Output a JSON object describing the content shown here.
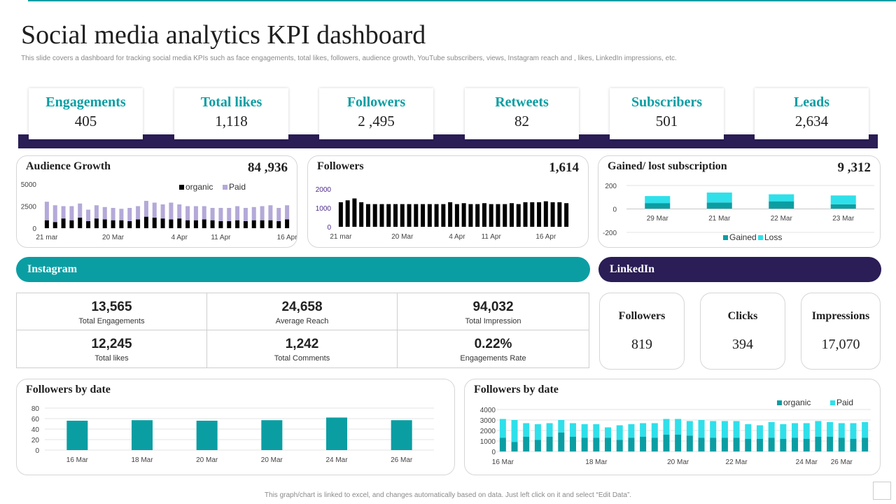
{
  "header": {
    "title": "Social media analytics KPI dashboard",
    "subtitle": "This slide covers a dashboard for tracking social media KPIs  such as face engagements, total likes,  followers, audience growth, YouTube subscribers, views, Instagram reach and , likes,  LinkedIn  impressions, etc."
  },
  "colors": {
    "teal": "#0a9ea3",
    "navy": "#2b1d55",
    "lavender": "#b4a9d8",
    "cyan": "#2fe0ea",
    "black": "#000000"
  },
  "kpis": [
    {
      "label": "Engagements",
      "value": "405"
    },
    {
      "label": "Total likes",
      "value": "1,118"
    },
    {
      "label": "Followers",
      "value": "2 ,495"
    },
    {
      "label": "Retweets",
      "value": "82"
    },
    {
      "label": "Subscribers",
      "value": "501"
    },
    {
      "label": "Leads",
      "value": "2,634"
    }
  ],
  "cards": {
    "audience": {
      "title": "Audience Growth",
      "value": "84 ,936"
    },
    "followers": {
      "title": "Followers",
      "value": "1,614"
    },
    "gained": {
      "title": "Gained/ lost subscription",
      "value": "9 ,312"
    },
    "fbd1": {
      "title": "Followers by date"
    },
    "fbd2": {
      "title": "Followers by date"
    }
  },
  "instagram": {
    "title": "Instagram",
    "metrics": [
      {
        "value": "13,565",
        "label": "Total Engagements"
      },
      {
        "value": "24,658",
        "label": "Average Reach"
      },
      {
        "value": "94,032",
        "label": "Total Impression"
      },
      {
        "value": "12,245",
        "label": "Total likes"
      },
      {
        "value": "1,242",
        "label": "Total Comments"
      },
      {
        "value": "0.22%",
        "label": "Engagements Rate"
      }
    ]
  },
  "linkedin": {
    "title": "LinkedIn",
    "metrics": [
      {
        "label": "Followers",
        "value": "819"
      },
      {
        "label": "Clicks",
        "value": "394"
      },
      {
        "label": "Impressions",
        "value": "17,070"
      }
    ]
  },
  "footer": "This graph/chart is linked to excel, and changes automatically based on data. Just left click on it and select “Edit Data”.",
  "chart_data": [
    {
      "id": "audience",
      "type": "bar",
      "stacked": true,
      "ylim": [
        0,
        5000
      ],
      "yticks": [
        "0",
        "2500",
        "5000"
      ],
      "xticklabels": [
        {
          "label": "21 mar",
          "index": 0
        },
        {
          "label": "20 Mar",
          "index": 8
        },
        {
          "label": "4 Apr",
          "index": 16
        },
        {
          "label": "11 Apr",
          "index": 21
        },
        {
          "label": "16 Apr",
          "index": 29
        }
      ],
      "legend": [
        "organic",
        "Paid"
      ],
      "series": [
        {
          "name": "organic",
          "color": "#000000",
          "values": [
            900,
            700,
            1100,
            900,
            1200,
            800,
            1100,
            1000,
            900,
            900,
            800,
            1000,
            1300,
            1200,
            1100,
            1000,
            1100,
            900,
            900,
            1000,
            900,
            800,
            800,
            900,
            800,
            900,
            900,
            900,
            800,
            1000
          ]
        },
        {
          "name": "Paid",
          "color": "#b4a9d8",
          "values": [
            2100,
            1900,
            1400,
            1600,
            1600,
            1300,
            1500,
            1400,
            1400,
            1300,
            1500,
            1500,
            1800,
            1700,
            1600,
            1900,
            1600,
            1600,
            1600,
            1500,
            1400,
            1500,
            1500,
            1600,
            1500,
            1500,
            1600,
            1700,
            1500,
            1600
          ]
        }
      ]
    },
    {
      "id": "followers",
      "type": "bar",
      "ylim": [
        0,
        2000
      ],
      "yticks": [
        "0",
        "1000",
        "2000"
      ],
      "xticklabels": [
        {
          "label": "21 mar",
          "index": 0
        },
        {
          "label": "20 Mar",
          "index": 9
        },
        {
          "label": "4 Apr",
          "index": 17
        },
        {
          "label": "11 Apr",
          "index": 22
        },
        {
          "label": "16 Apr",
          "index": 30
        }
      ],
      "series": [
        {
          "name": "Followers",
          "color": "#000000",
          "values": [
            1300,
            1400,
            1500,
            1300,
            1200,
            1200,
            1200,
            1200,
            1200,
            1200,
            1200,
            1200,
            1200,
            1200,
            1200,
            1200,
            1300,
            1200,
            1250,
            1200,
            1200,
            1250,
            1200,
            1200,
            1200,
            1250,
            1200,
            1300,
            1300,
            1300,
            1350,
            1300,
            1300,
            1250
          ]
        }
      ]
    },
    {
      "id": "gained",
      "type": "bar",
      "stacked": true,
      "ylim": [
        -200,
        200
      ],
      "yticks": [
        "-200",
        "0",
        "200"
      ],
      "categories": [
        "29 Mar",
        "21 Mar",
        "22 Mar",
        "23 Mar"
      ],
      "legend": [
        "Gained",
        "Loss"
      ],
      "series": [
        {
          "name": "Gained",
          "color": "#0a9ea3",
          "values": [
            50,
            55,
            65,
            40
          ]
        },
        {
          "name": "Loss",
          "color": "#2fe0ea",
          "values": [
            60,
            85,
            60,
            75
          ]
        }
      ]
    },
    {
      "id": "fbd1",
      "type": "bar",
      "ylim": [
        0,
        80
      ],
      "yticks": [
        "0",
        "20",
        "40",
        "60",
        "80"
      ],
      "categories": [
        "16 Mar",
        "18 Mar",
        "20 Mar",
        "20 Mar",
        "24 Mar",
        "26 Mar"
      ],
      "series": [
        {
          "name": "Followers",
          "color": "#0a9ea3",
          "values": [
            56,
            57,
            56,
            57,
            62,
            57
          ]
        }
      ]
    },
    {
      "id": "fbd2",
      "type": "bar",
      "stacked": true,
      "ylim": [
        0,
        4000
      ],
      "yticks": [
        "0",
        "1000",
        "2000",
        "3000",
        "4000"
      ],
      "xticklabels": [
        {
          "label": "16 Mar",
          "index": 0
        },
        {
          "label": "18 Mar",
          "index": 8
        },
        {
          "label": "20 Mar",
          "index": 15
        },
        {
          "label": "22 Mar",
          "index": 20
        },
        {
          "label": "24 Mar",
          "index": 26
        },
        {
          "label": "26 Mar",
          "index": 29
        }
      ],
      "legend": [
        "organic",
        "Paid"
      ],
      "series": [
        {
          "name": "organic",
          "color": "#0a9ea3",
          "values": [
            1300,
            900,
            1400,
            1100,
            1400,
            1800,
            1400,
            1300,
            1300,
            1300,
            1100,
            1300,
            1400,
            1300,
            1600,
            1600,
            1500,
            1300,
            1300,
            1300,
            1300,
            1200,
            1200,
            1300,
            1200,
            1300,
            1200,
            1400,
            1400,
            1300,
            1200,
            1300
          ]
        },
        {
          "name": "Paid",
          "color": "#2fe0ea",
          "values": [
            1800,
            2100,
            1300,
            1500,
            1300,
            1200,
            1300,
            1300,
            1300,
            1000,
            1400,
            1300,
            1300,
            1400,
            1500,
            1500,
            1400,
            1700,
            1600,
            1600,
            1600,
            1400,
            1300,
            1500,
            1400,
            1400,
            1500,
            1500,
            1400,
            1400,
            1500,
            1500
          ]
        }
      ]
    }
  ]
}
